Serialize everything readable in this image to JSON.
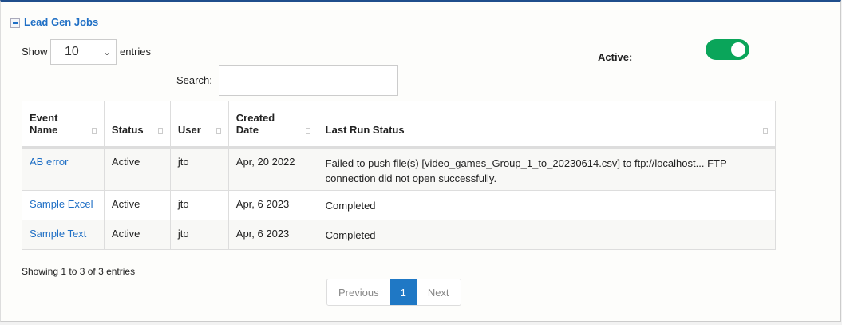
{
  "section": {
    "title": "Lead Gen Jobs",
    "collapse_icon": "minus-square-icon"
  },
  "length": {
    "show_label": "Show",
    "value": "10",
    "entries_label": "entries"
  },
  "search": {
    "label": "Search:",
    "value": ""
  },
  "active": {
    "label": "Active:",
    "on": true,
    "color": "#0aa55a"
  },
  "table": {
    "headers": [
      "Event Name",
      "Status",
      "User",
      "Created Date",
      "Last Run Status"
    ],
    "header_lines": [
      [
        "Event",
        "Name"
      ],
      [
        "Status"
      ],
      [
        "User"
      ],
      [
        "Created",
        "Date"
      ],
      [
        "Last Run Status"
      ]
    ],
    "rows": [
      {
        "name": "AB error",
        "status": "Active",
        "user": "jto",
        "date": "Apr, 20 2022",
        "last": "Failed to push file(s) [video_games_Group_1_to_20230614.csv] to ftp://localhost... FTP connection did not open successfully."
      },
      {
        "name": "Sample Excel",
        "status": "Active",
        "user": "jto",
        "date": "Apr, 6 2023",
        "last": "Completed"
      },
      {
        "name": "Sample Text",
        "status": "Active",
        "user": "jto",
        "date": "Apr, 6 2023",
        "last": "Completed"
      }
    ]
  },
  "info": "Showing 1 to 3 of 3 entries",
  "pagination": {
    "previous": "Previous",
    "current": "1",
    "next": "Next"
  },
  "colors": {
    "link": "#1f6fc5",
    "accent": "#1f78c5"
  }
}
